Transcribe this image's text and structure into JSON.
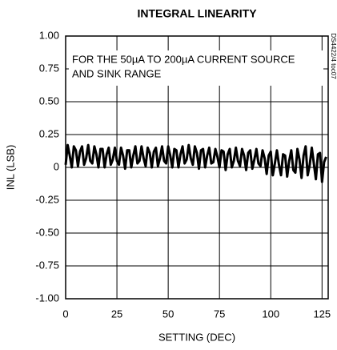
{
  "chart_data": {
    "type": "line",
    "title": "INTEGRAL LINEARITY",
    "xlabel": "SETTING (DEC)",
    "ylabel": "INL (LSB)",
    "annotations": [
      "FOR THE 50µA TO 200µA CURRENT SOURCE",
      "AND SINK RANGE"
    ],
    "figure_id": "DS4422/4 toc07",
    "xlim": [
      0,
      128
    ],
    "xticks": [
      0,
      25,
      50,
      75,
      100,
      125
    ],
    "ylim": [
      -1,
      1
    ],
    "yticks": [
      {
        "value": -1,
        "label": "-1.00"
      },
      {
        "value": -0.75,
        "label": "-0.75"
      },
      {
        "value": -0.5,
        "label": "-0.50"
      },
      {
        "value": -0.25,
        "label": "-0.25"
      },
      0,
      {
        "value": 0.25,
        "label": "0.25"
      },
      {
        "value": 0.5,
        "label": "0.50"
      },
      {
        "value": 0.75,
        "label": "0.75"
      },
      {
        "value": 1,
        "label": "1.00"
      }
    ],
    "grid": true,
    "series": [
      {
        "color": "#000000",
        "x": [
          0,
          1,
          2,
          3,
          4,
          5,
          6,
          7,
          8,
          9,
          10,
          11,
          12,
          13,
          14,
          15,
          16,
          17,
          18,
          19,
          20,
          21,
          22,
          23,
          24,
          25,
          26,
          27,
          28,
          29,
          30,
          31,
          32,
          33,
          34,
          35,
          36,
          37,
          38,
          39,
          40,
          41,
          42,
          43,
          44,
          45,
          46,
          47,
          48,
          49,
          50,
          51,
          52,
          53,
          54,
          55,
          56,
          57,
          58,
          59,
          60,
          61,
          62,
          63,
          64,
          65,
          66,
          67,
          68,
          69,
          70,
          71,
          72,
          73,
          74,
          75,
          76,
          77,
          78,
          79,
          80,
          81,
          82,
          83,
          84,
          85,
          86,
          87,
          88,
          89,
          90,
          91,
          92,
          93,
          94,
          95,
          96,
          97,
          98,
          99,
          100,
          101,
          102,
          103,
          104,
          105,
          106,
          107,
          108,
          109,
          110,
          111,
          112,
          113,
          114,
          115,
          116,
          117,
          118,
          119,
          120,
          121,
          122,
          123,
          124,
          125,
          126,
          127
        ],
        "values": [
          0.02,
          0.17,
          0.09,
          0.0,
          0.16,
          0.13,
          0.01,
          0.12,
          0.16,
          0.02,
          0.07,
          0.17,
          0.05,
          0.03,
          0.16,
          0.1,
          0.0,
          0.14,
          0.14,
          0.0,
          0.1,
          0.15,
          0.02,
          0.06,
          0.15,
          0.05,
          0.02,
          0.15,
          0.09,
          -0.01,
          0.13,
          0.13,
          0.0,
          0.09,
          0.16,
          0.03,
          0.05,
          0.16,
          0.07,
          0.01,
          0.15,
          0.11,
          0.0,
          0.12,
          0.15,
          0.01,
          0.07,
          0.16,
          0.05,
          0.03,
          0.16,
          0.09,
          0.0,
          0.14,
          0.13,
          0.0,
          0.1,
          0.16,
          0.03,
          0.06,
          0.17,
          0.07,
          0.02,
          0.16,
          0.11,
          -0.01,
          0.13,
          0.14,
          0.0,
          0.09,
          0.15,
          0.03,
          0.04,
          0.14,
          0.08,
          0.0,
          0.13,
          0.12,
          -0.02,
          0.1,
          0.14,
          0.0,
          0.05,
          0.15,
          0.05,
          0.01,
          0.14,
          0.09,
          -0.02,
          0.11,
          0.13,
          -0.01,
          0.06,
          0.14,
          0.03,
          0.01,
          0.13,
          0.07,
          -0.05,
          0.09,
          0.12,
          -0.06,
          0.03,
          0.13,
          0.02,
          -0.06,
          0.1,
          0.09,
          -0.07,
          0.05,
          0.13,
          -0.02,
          -0.04,
          0.14,
          0.06,
          -0.08,
          0.09,
          0.16,
          -0.06,
          0.02,
          0.15,
          0.03,
          -0.09,
          0.1,
          0.11,
          -0.11,
          0.04,
          0.08
        ]
      }
    ]
  }
}
